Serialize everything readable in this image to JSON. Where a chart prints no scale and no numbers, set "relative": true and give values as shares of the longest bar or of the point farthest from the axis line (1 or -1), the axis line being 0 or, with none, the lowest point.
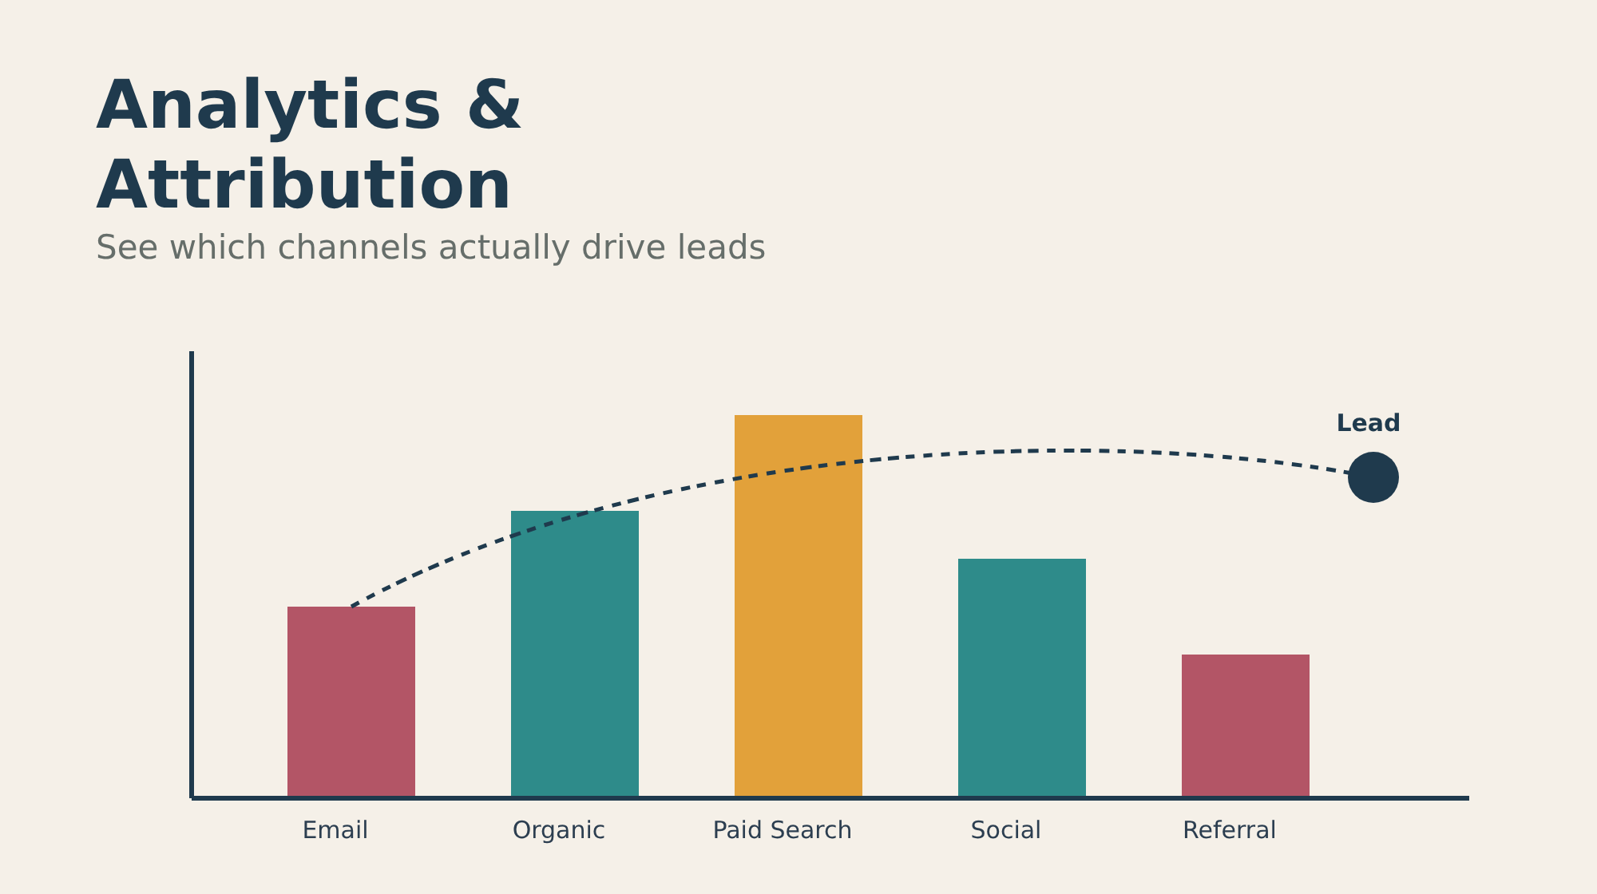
{
  "chart_data": {
    "type": "bar",
    "title": "Analytics & Attribution",
    "subtitle": "See which channels actually drive leads",
    "relative": true,
    "categories": [
      "Email",
      "Organic",
      "Paid Search",
      "Social",
      "Referral"
    ],
    "values": [
      0.5,
      0.75,
      1,
      0.625,
      0.375
    ],
    "colors": [
      "#b35566",
      "#2e8b8a",
      "#e2a13a",
      "#2e8b8a",
      "#b35566"
    ],
    "annotations": [
      "Lead"
    ]
  }
}
